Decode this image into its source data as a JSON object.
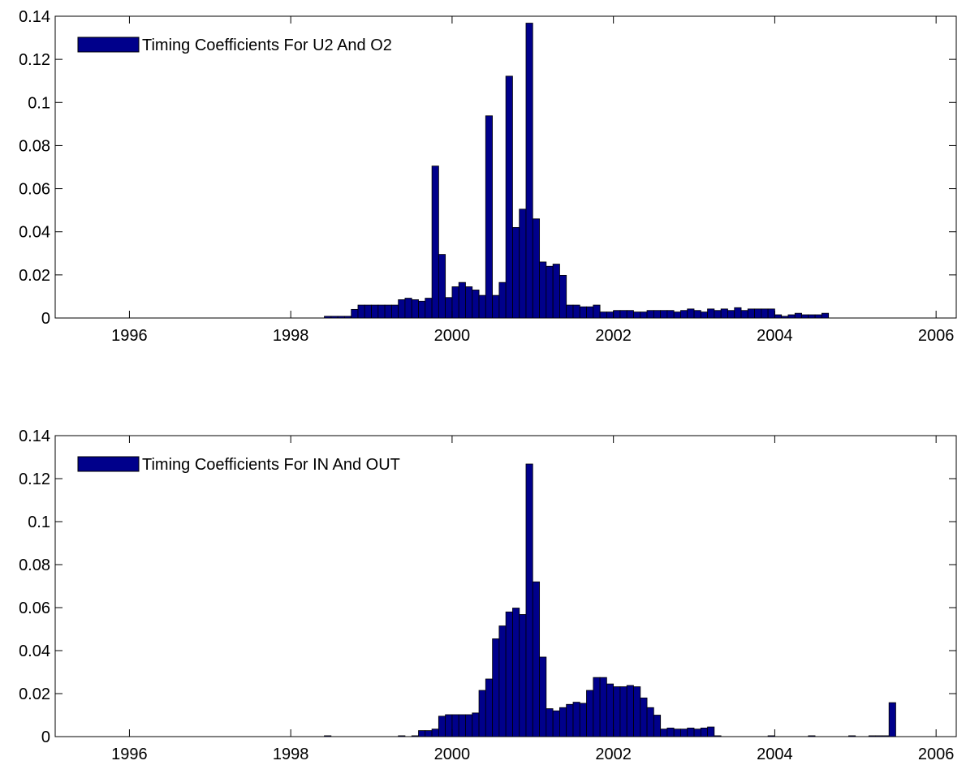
{
  "chart_data": [
    {
      "type": "bar",
      "title": "",
      "xlabel": "",
      "ylabel": "",
      "xlim": [
        1995.08,
        2006.25
      ],
      "ylim": [
        0,
        0.14
      ],
      "x_ticks": [
        1996,
        1998,
        2000,
        2002,
        2004,
        2006
      ],
      "x_tick_labels": [
        "1996",
        "1998",
        "2000",
        "2002",
        "2004",
        "2006"
      ],
      "y_ticks": [
        0,
        0.02,
        0.04,
        0.06,
        0.08,
        0.1,
        0.12,
        0.14
      ],
      "y_tick_labels": [
        "0",
        "0.02",
        "0.04",
        "0.06",
        "0.08",
        "0.1",
        "0.12",
        "0.14"
      ],
      "grid": false,
      "legend_position": "top-left",
      "bar_color": "#00008b",
      "series": [
        {
          "name": "Timing Coefficients For U2 And O2",
          "x": [
            1998.458,
            1998.542,
            1998.625,
            1998.708,
            1998.792,
            1998.875,
            1998.958,
            1999.042,
            1999.125,
            1999.208,
            1999.292,
            1999.375,
            1999.458,
            1999.542,
            1999.625,
            1999.708,
            1999.792,
            1999.875,
            1999.958,
            2000.042,
            2000.125,
            2000.208,
            2000.292,
            2000.375,
            2000.458,
            2000.542,
            2000.625,
            2000.708,
            2000.792,
            2000.875,
            2000.958,
            2001.042,
            2001.125,
            2001.208,
            2001.292,
            2001.375,
            2001.458,
            2001.542,
            2001.625,
            2001.708,
            2001.792,
            2001.875,
            2001.958,
            2002.042,
            2002.125,
            2002.208,
            2002.292,
            2002.375,
            2002.458,
            2002.542,
            2002.625,
            2002.708,
            2002.792,
            2002.875,
            2002.958,
            2003.042,
            2003.125,
            2003.208,
            2003.292,
            2003.375,
            2003.458,
            2003.542,
            2003.625,
            2003.708,
            2003.792,
            2003.875,
            2003.958,
            2004.042,
            2004.125,
            2004.208,
            2004.292,
            2004.375,
            2004.458,
            2004.542,
            2004.625
          ],
          "values": [
            0.0008,
            0.0008,
            0.0008,
            0.0008,
            0.004,
            0.006,
            0.006,
            0.006,
            0.006,
            0.006,
            0.006,
            0.0085,
            0.0092,
            0.0085,
            0.0078,
            0.0092,
            0.0705,
            0.0295,
            0.0095,
            0.0145,
            0.0165,
            0.0145,
            0.013,
            0.0105,
            0.0938,
            0.0105,
            0.0165,
            0.1122,
            0.042,
            0.0505,
            0.1368,
            0.046,
            0.026,
            0.024,
            0.025,
            0.0198,
            0.006,
            0.006,
            0.0052,
            0.0052,
            0.006,
            0.0028,
            0.0028,
            0.0035,
            0.0035,
            0.0035,
            0.0028,
            0.0028,
            0.0035,
            0.0035,
            0.0035,
            0.0035,
            0.0028,
            0.0035,
            0.0042,
            0.0035,
            0.0028,
            0.0042,
            0.0035,
            0.0042,
            0.0035,
            0.0048,
            0.0035,
            0.0042,
            0.0042,
            0.0042,
            0.0042,
            0.0015,
            0.0008,
            0.0015,
            0.0022,
            0.0015,
            0.0015,
            0.0015,
            0.0022
          ]
        }
      ]
    },
    {
      "type": "bar",
      "title": "",
      "xlabel": "",
      "ylabel": "",
      "xlim": [
        1995.08,
        2006.25
      ],
      "ylim": [
        0,
        0.14
      ],
      "x_ticks": [
        1996,
        1998,
        2000,
        2002,
        2004,
        2006
      ],
      "x_tick_labels": [
        "1996",
        "1998",
        "2000",
        "2002",
        "2004",
        "2006"
      ],
      "y_ticks": [
        0,
        0.02,
        0.04,
        0.06,
        0.08,
        0.1,
        0.12,
        0.14
      ],
      "y_tick_labels": [
        "0",
        "0.02",
        "0.04",
        "0.06",
        "0.08",
        "0.1",
        "0.12",
        "0.14"
      ],
      "grid": false,
      "legend_position": "top-left",
      "bar_color": "#00008b",
      "series": [
        {
          "name": "Timing Coefficients For IN And OUT",
          "x": [
            1998.458,
            1999.375,
            1999.542,
            1999.625,
            1999.708,
            1999.792,
            1999.875,
            1999.958,
            2000.042,
            2000.125,
            2000.208,
            2000.292,
            2000.375,
            2000.458,
            2000.542,
            2000.625,
            2000.708,
            2000.792,
            2000.875,
            2000.958,
            2001.042,
            2001.125,
            2001.208,
            2001.292,
            2001.375,
            2001.458,
            2001.542,
            2001.625,
            2001.708,
            2001.792,
            2001.875,
            2001.958,
            2002.042,
            2002.125,
            2002.208,
            2002.292,
            2002.375,
            2002.458,
            2002.542,
            2002.625,
            2002.708,
            2002.792,
            2002.875,
            2002.958,
            2003.042,
            2003.125,
            2003.208,
            2003.292,
            2003.958,
            2004.458,
            2004.958,
            2005.208,
            2005.292,
            2005.375,
            2005.458
          ],
          "values": [
            0.0004,
            0.0004,
            0.0004,
            0.0028,
            0.0028,
            0.0035,
            0.0095,
            0.0102,
            0.0102,
            0.0102,
            0.0102,
            0.011,
            0.0215,
            0.0268,
            0.0455,
            0.0515,
            0.058,
            0.0598,
            0.0568,
            0.1268,
            0.072,
            0.037,
            0.013,
            0.012,
            0.0135,
            0.015,
            0.016,
            0.0155,
            0.0215,
            0.0275,
            0.0275,
            0.0245,
            0.0232,
            0.0232,
            0.0238,
            0.0232,
            0.018,
            0.0135,
            0.01,
            0.0035,
            0.004,
            0.0035,
            0.0035,
            0.004,
            0.0035,
            0.004,
            0.0045,
            0.0004,
            0.0004,
            0.0004,
            0.0004,
            0.0004,
            0.0004,
            0.0004,
            0.0158
          ]
        }
      ]
    }
  ]
}
